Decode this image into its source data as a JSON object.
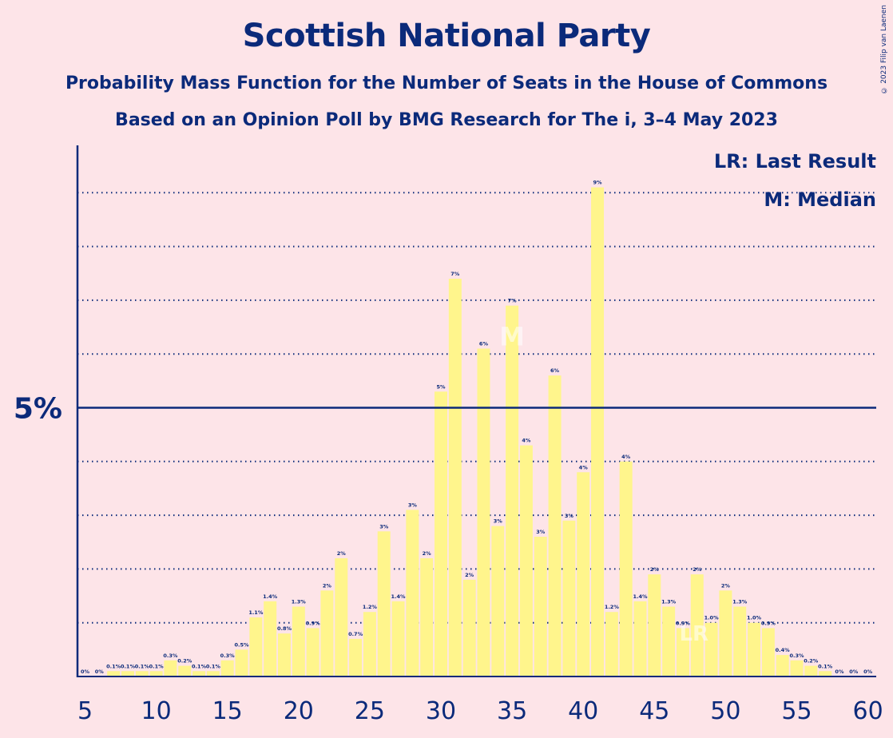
{
  "title": "Scottish National Party",
  "subtitle1": "Probability Mass Function for the Number of Seats in the House of Commons",
  "subtitle2": "Based on an Opinion Poll by BMG Research for The i, 3–4 May 2023",
  "copyright": "© 2023 Filip van Laenen",
  "legend": {
    "lr": "LR: Last Result",
    "median": "M: Median"
  },
  "colors": {
    "bar": "#fff58c",
    "axis": "#0b2a7a",
    "background": "#fde4e8"
  },
  "chart_data": {
    "type": "bar",
    "x": [
      5,
      6,
      7,
      8,
      9,
      10,
      11,
      12,
      13,
      14,
      15,
      16,
      17,
      18,
      19,
      20,
      21,
      22,
      23,
      24,
      25,
      26,
      27,
      28,
      29,
      30,
      31,
      32,
      33,
      34,
      35,
      36,
      37,
      38,
      39,
      40,
      41,
      42,
      43,
      44,
      45,
      46,
      47,
      48,
      49,
      50,
      51,
      52,
      53,
      54,
      55,
      56,
      57,
      58,
      59,
      60
    ],
    "values": [
      0,
      0,
      0.1,
      0.1,
      0.1,
      0.1,
      0.3,
      0.2,
      0.1,
      0.1,
      0.3,
      0.5,
      1.1,
      1.4,
      0.8,
      1.3,
      0.9,
      1.6,
      2.2,
      0.7,
      1.2,
      2.7,
      1.4,
      3.1,
      2.2,
      5.3,
      7.4,
      1.8,
      6.1,
      2.8,
      6.9,
      4.3,
      2.6,
      5.6,
      2.9,
      3.8,
      9.1,
      1.2,
      4.0,
      1.4,
      1.9,
      1.3,
      0.9,
      1.9,
      1.0,
      1.6,
      1.3,
      1.0,
      0.9,
      0.4,
      0.3,
      0.2,
      0.1,
      0,
      0,
      0
    ],
    "labels": [
      "0%",
      "0%",
      "0.1%",
      "0.1%",
      "0.1%",
      "0.1%",
      "0.3%",
      "0.2%",
      "0.1%",
      "0.1%",
      "0.3%",
      "0.5%",
      "1.1%",
      "1.4%",
      "0.8%",
      "1.3%",
      "0.9%",
      "2%",
      "2%",
      "0.7%",
      "1.2%",
      "3%",
      "1.4%",
      "3%",
      "2%",
      "5%",
      "7%",
      "2%",
      "6%",
      "3%",
      "7%",
      "4%",
      "3%",
      "6%",
      "3%",
      "4%",
      "9%",
      "1.2%",
      "4%",
      "1.4%",
      "2%",
      "1.3%",
      "0.9%",
      "2%",
      "1.0%",
      "2%",
      "1.3%",
      "1.0%",
      "0.9%",
      "0.4%",
      "0.3%",
      "0.2%",
      "0.1%",
      "0%",
      "0%",
      "0%"
    ],
    "x_ticks": [
      "5",
      "10",
      "15",
      "20",
      "25",
      "30",
      "35",
      "40",
      "45",
      "50",
      "55",
      "60"
    ],
    "y_tick_label": "5%",
    "y_tick_value": 5,
    "ylim": [
      0,
      9.9
    ],
    "gridlines": [
      1,
      2,
      3,
      4,
      6,
      7,
      8,
      9
    ],
    "median_seat": 35,
    "median_marker": "M",
    "last_result_seat": 48,
    "last_result_marker": "LR"
  }
}
